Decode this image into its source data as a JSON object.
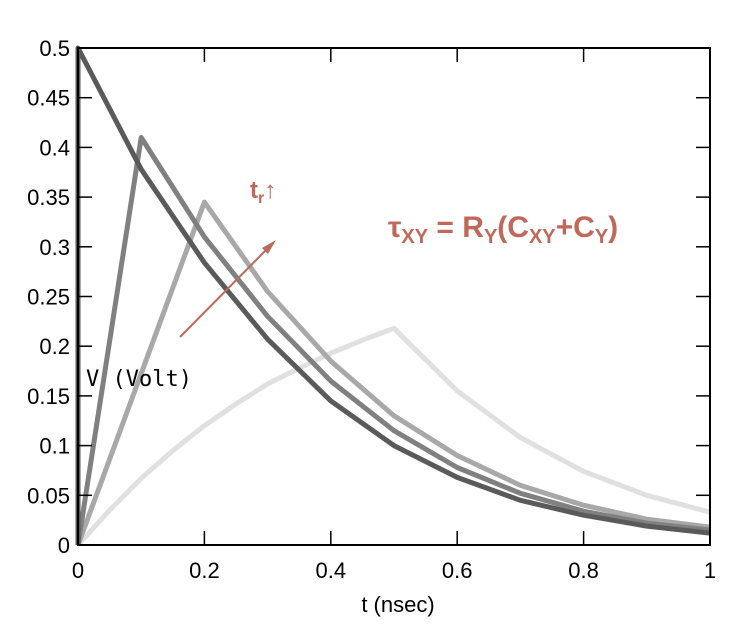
{
  "chart_data": {
    "type": "line",
    "title": "",
    "xlabel": "t (nsec)",
    "ylabel_visible": "V   (Volt)",
    "xlim": [
      0,
      1
    ],
    "ylim": [
      0,
      0.5
    ],
    "x_ticks": [
      "0",
      "0.2",
      "0.4",
      "0.6",
      "0.8",
      "1"
    ],
    "y_ticks": [
      "0",
      "0.05",
      "0.1",
      "0.15",
      "0.2",
      "0.25",
      "0.3",
      "0.35",
      "0.4",
      "0.45",
      "0.5"
    ],
    "grid": false,
    "annotations": {
      "tr_label": "t",
      "tr_sub": "r",
      "tr_arrow": "↑",
      "tau_t": "τ",
      "tau_sub1": "XY",
      "tau_eq": " = R",
      "tau_sub2": "Y",
      "tau_paren": "(C",
      "tau_sub3": "XY",
      "tau_plus": "+C",
      "tau_sub4": "Y",
      "tau_close": ")"
    },
    "series": [
      {
        "tr": 0.0,
        "peak": 0.5,
        "color": "#5a5a5a",
        "points": [
          [
            0,
            0
          ],
          [
            0,
            0.5
          ],
          [
            0.1,
            0.378
          ],
          [
            0.2,
            0.284
          ],
          [
            0.3,
            0.207
          ],
          [
            0.4,
            0.145
          ],
          [
            0.5,
            0.1
          ],
          [
            0.6,
            0.068
          ],
          [
            0.7,
            0.045
          ],
          [
            0.8,
            0.03
          ],
          [
            0.9,
            0.019
          ],
          [
            1.0,
            0.012
          ]
        ]
      },
      {
        "tr": 0.1,
        "peak": 0.41,
        "color": "#808080",
        "points": [
          [
            0,
            0
          ],
          [
            0.1,
            0.41
          ],
          [
            0.2,
            0.31
          ],
          [
            0.3,
            0.23
          ],
          [
            0.4,
            0.165
          ],
          [
            0.5,
            0.115
          ],
          [
            0.6,
            0.078
          ],
          [
            0.7,
            0.052
          ],
          [
            0.8,
            0.034
          ],
          [
            0.9,
            0.022
          ],
          [
            1.0,
            0.015
          ]
        ]
      },
      {
        "tr": 0.2,
        "peak": 0.345,
        "color": "#a8a8a8",
        "points": [
          [
            0,
            0
          ],
          [
            0.2,
            0.345
          ],
          [
            0.3,
            0.255
          ],
          [
            0.4,
            0.185
          ],
          [
            0.5,
            0.13
          ],
          [
            0.6,
            0.09
          ],
          [
            0.7,
            0.06
          ],
          [
            0.8,
            0.04
          ],
          [
            0.9,
            0.026
          ],
          [
            1.0,
            0.018
          ]
        ]
      },
      {
        "tr": 0.5,
        "peak": 0.218,
        "color": "#e0e0e0",
        "points": [
          [
            0,
            0
          ],
          [
            0.05,
            0.035
          ],
          [
            0.1,
            0.067
          ],
          [
            0.15,
            0.095
          ],
          [
            0.2,
            0.12
          ],
          [
            0.25,
            0.142
          ],
          [
            0.3,
            0.162
          ],
          [
            0.35,
            0.178
          ],
          [
            0.4,
            0.193
          ],
          [
            0.45,
            0.206
          ],
          [
            0.5,
            0.218
          ],
          [
            0.6,
            0.155
          ],
          [
            0.7,
            0.108
          ],
          [
            0.8,
            0.074
          ],
          [
            0.9,
            0.05
          ],
          [
            1.0,
            0.033
          ]
        ]
      }
    ]
  }
}
